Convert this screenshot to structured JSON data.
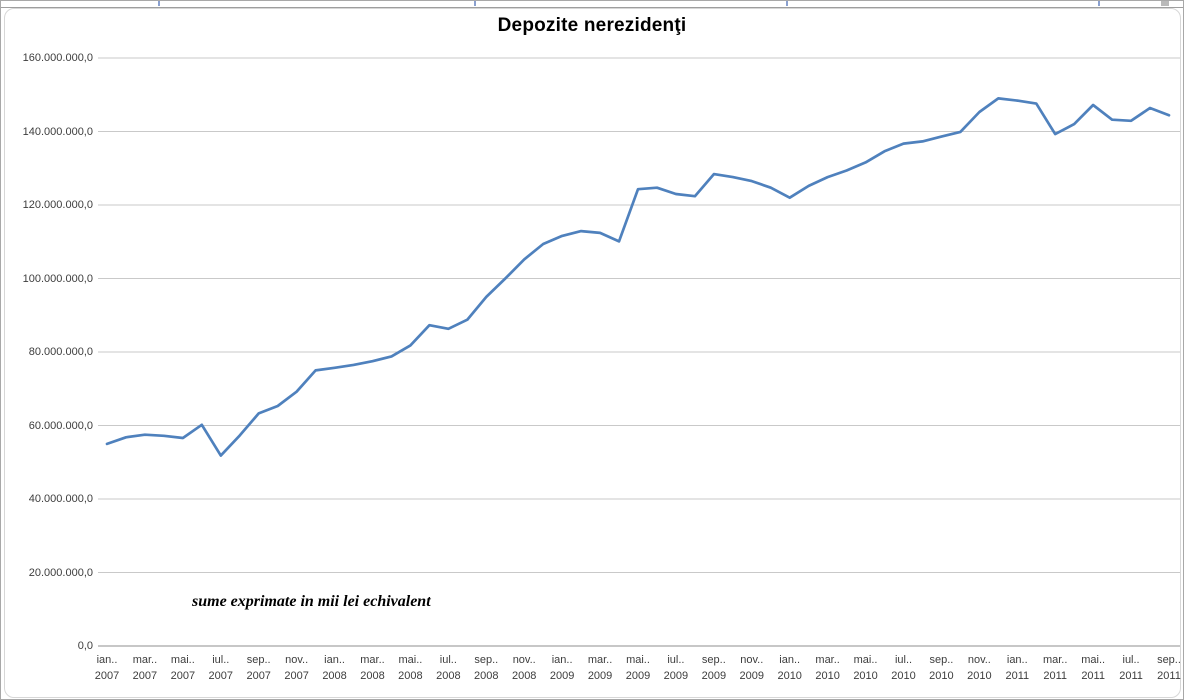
{
  "chart_data": {
    "type": "line",
    "title": "Depozite nerezidenţi",
    "annotation": "sume exprimate in mii lei echivalent",
    "units": "mii lei echivalent",
    "grid": "horizontal",
    "legend_position": "none",
    "ylim": [
      0,
      160000000
    ],
    "y_tick_interval": 20000000,
    "y_tick_labels": [
      "0,0",
      "20.000.000,0",
      "40.000.000,0",
      "60.000.000,0",
      "80.000.000,0",
      "100.000.000,0",
      "120.000.000,0",
      "140.000.000,0",
      "160.000.000,0"
    ],
    "x_frequency": "monthly",
    "x_start": "ian 2007",
    "x_end": "sep 2011",
    "x_tick_labels": [
      {
        "month": "ian..",
        "year": "2007"
      },
      {
        "month": "mar..",
        "year": "2007"
      },
      {
        "month": "mai..",
        "year": "2007"
      },
      {
        "month": "iul..",
        "year": "2007"
      },
      {
        "month": "sep..",
        "year": "2007"
      },
      {
        "month": "nov..",
        "year": "2007"
      },
      {
        "month": "ian..",
        "year": "2008"
      },
      {
        "month": "mar..",
        "year": "2008"
      },
      {
        "month": "mai..",
        "year": "2008"
      },
      {
        "month": "iul..",
        "year": "2008"
      },
      {
        "month": "sep..",
        "year": "2008"
      },
      {
        "month": "nov..",
        "year": "2008"
      },
      {
        "month": "ian..",
        "year": "2009"
      },
      {
        "month": "mar..",
        "year": "2009"
      },
      {
        "month": "mai..",
        "year": "2009"
      },
      {
        "month": "iul..",
        "year": "2009"
      },
      {
        "month": "sep..",
        "year": "2009"
      },
      {
        "month": "nov..",
        "year": "2009"
      },
      {
        "month": "ian..",
        "year": "2010"
      },
      {
        "month": "mar..",
        "year": "2010"
      },
      {
        "month": "mai..",
        "year": "2010"
      },
      {
        "month": "iul..",
        "year": "2010"
      },
      {
        "month": "sep..",
        "year": "2010"
      },
      {
        "month": "nov..",
        "year": "2010"
      },
      {
        "month": "ian..",
        "year": "2011"
      },
      {
        "month": "mar..",
        "year": "2011"
      },
      {
        "month": "mai..",
        "year": "2011"
      },
      {
        "month": "iul..",
        "year": "2011"
      },
      {
        "month": "sep..",
        "year": "2011"
      }
    ],
    "series": [
      {
        "name": "Depozite nerezidenţi",
        "color": "#4F81BD",
        "values": [
          55000000,
          56800000,
          57500000,
          57200000,
          56600000,
          60200000,
          51800000,
          57300000,
          63300000,
          65300000,
          69200000,
          75000000,
          75700000,
          76500000,
          77500000,
          78800000,
          81800000,
          87300000,
          86300000,
          88800000,
          95000000,
          100000000,
          105200000,
          109400000,
          111600000,
          112900000,
          112400000,
          110100000,
          124300000,
          124700000,
          123000000,
          122400000,
          128400000,
          127600000,
          126500000,
          124700000,
          122000000,
          125200000,
          127600000,
          129400000,
          131600000,
          134600000,
          136700000,
          137300000,
          138600000,
          139900000,
          145300000,
          149000000,
          148400000,
          147600000,
          139300000,
          142000000,
          147200000,
          143200000,
          142900000,
          146400000,
          144400000
        ]
      }
    ]
  }
}
